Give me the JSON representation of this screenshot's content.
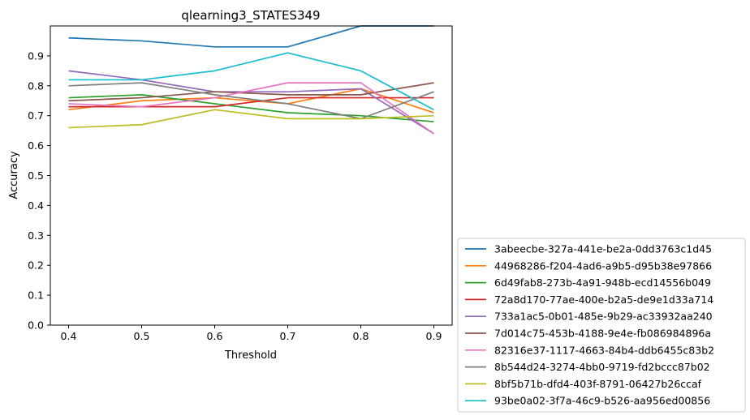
{
  "chart_data": {
    "type": "line",
    "title": "qlearning3_STATES349",
    "xlabel": "Threshold",
    "ylabel": "Accuracy",
    "x": [
      0.4,
      0.5,
      0.6,
      0.7,
      0.8,
      0.9
    ],
    "xticks": [
      "0.4",
      "0.5",
      "0.6",
      "0.7",
      "0.8",
      "0.9"
    ],
    "yticks": [
      "0.0",
      "0.1",
      "0.2",
      "0.3",
      "0.4",
      "0.5",
      "0.6",
      "0.7",
      "0.8",
      "0.9"
    ],
    "xlim": [
      0.375,
      0.925
    ],
    "ylim": [
      0.0,
      1.0
    ],
    "grid": false,
    "legend_position": "outside-bottom-right",
    "series": [
      {
        "name": "3abeecbe-327a-441e-be2a-0dd3763c1d45",
        "color": "#1f77b4",
        "values": [
          0.96,
          0.95,
          0.93,
          0.93,
          1.0,
          1.0
        ]
      },
      {
        "name": "44968286-f204-4ad6-a9b5-d95b38e97866",
        "color": "#ff7f0e",
        "values": [
          0.72,
          0.75,
          0.76,
          0.74,
          0.79,
          0.71
        ]
      },
      {
        "name": "6d49fab8-273b-4a91-948b-ecd14556b049",
        "color": "#2ca02c",
        "values": [
          0.76,
          0.77,
          0.74,
          0.71,
          0.7,
          0.68
        ]
      },
      {
        "name": "72a8d170-77ae-400e-b2a5-de9e1d33a714",
        "color": "#d62728",
        "values": [
          0.73,
          0.73,
          0.73,
          0.76,
          0.76,
          0.76
        ]
      },
      {
        "name": "733a1ac5-0b01-485e-9b29-ac33932aa240",
        "color": "#9467bd",
        "values": [
          0.85,
          0.82,
          0.78,
          0.78,
          0.79,
          0.64
        ]
      },
      {
        "name": "7d014c75-453b-4188-9e4e-fb086984896a",
        "color": "#8c564b",
        "values": [
          0.75,
          0.76,
          0.78,
          0.77,
          0.77,
          0.81
        ]
      },
      {
        "name": "82316e37-1117-4663-84b4-ddb6455c83b2",
        "color": "#e377c2",
        "values": [
          0.74,
          0.73,
          0.76,
          0.81,
          0.81,
          0.64
        ]
      },
      {
        "name": "8b544d24-3274-4bb0-9719-fd2bccc87b02",
        "color": "#7f7f7f",
        "values": [
          0.8,
          0.81,
          0.77,
          0.74,
          0.69,
          0.78
        ]
      },
      {
        "name": "8bf5b71b-dfd4-403f-8791-06427b26ccaf",
        "color": "#bcbd22",
        "values": [
          0.66,
          0.67,
          0.72,
          0.69,
          0.69,
          0.7
        ]
      },
      {
        "name": "93be0a02-3f7a-46c9-b526-aa956ed00856",
        "color": "#17becf",
        "values": [
          0.82,
          0.82,
          0.85,
          0.91,
          0.85,
          0.72
        ]
      }
    ]
  }
}
